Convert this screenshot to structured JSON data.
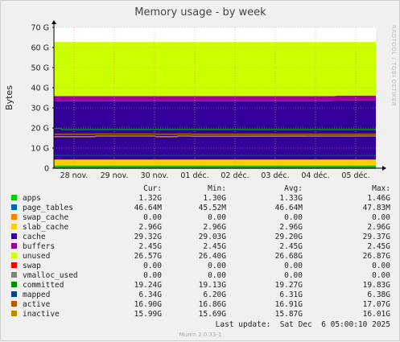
{
  "chart_data": {
    "type": "area",
    "title": "Memory usage - by week",
    "ylabel": "Bytes",
    "side_label": "RRDTOOL / TOBI OETIKER",
    "ylim": [
      0,
      70
    ],
    "yticks": [
      "0",
      "10 G",
      "20 G",
      "30 G",
      "40 G",
      "50 G",
      "60 G",
      "70 G"
    ],
    "x_labels": [
      "28 nov.",
      "29 nov.",
      "30 nov.",
      "01 déc.",
      "02 déc.",
      "03 déc.",
      "04 déc.",
      "05 déc."
    ],
    "x_ticks": [
      0.5,
      1.5,
      2.5,
      3.5,
      4.5,
      5.5,
      6.5,
      7.5
    ],
    "xlim": [
      0,
      8
    ],
    "stack_series": [
      {
        "name": "apps",
        "color": "#00cc00",
        "x": [
          0,
          8
        ],
        "values": [
          1.32,
          1.32
        ]
      },
      {
        "name": "page_tables",
        "color": "#0066b3",
        "x": [
          0,
          8
        ],
        "values": [
          0.05,
          0.05
        ]
      },
      {
        "name": "swap_cache",
        "color": "#ff8000",
        "x": [
          0,
          8
        ],
        "values": [
          0,
          0
        ]
      },
      {
        "name": "slab_cache",
        "color": "#ffcc00",
        "x": [
          0,
          8
        ],
        "values": [
          2.96,
          2.96
        ]
      },
      {
        "name": "cache",
        "color": "#330099",
        "x": [
          0,
          6.9,
          7.1,
          8
        ],
        "values": [
          29.0,
          29.0,
          29.3,
          29.32
        ]
      },
      {
        "name": "buffers",
        "color": "#990099",
        "x": [
          0,
          8
        ],
        "values": [
          2.45,
          2.45
        ]
      },
      {
        "name": "unused",
        "color": "#ccff00",
        "x": [
          0,
          6.9,
          7.1,
          8
        ],
        "values": [
          26.9,
          26.9,
          26.6,
          26.57
        ]
      },
      {
        "name": "swap",
        "color": "#ff0000",
        "x": [
          0,
          8
        ],
        "values": [
          0,
          0
        ]
      }
    ],
    "line_series": [
      {
        "name": "vmalloc_used",
        "color": "#808080",
        "x": [
          0,
          8
        ],
        "values": [
          0,
          0
        ]
      },
      {
        "name": "committed",
        "color": "#008f00",
        "x": [
          0,
          0.15,
          0.2,
          8
        ],
        "values": [
          19.8,
          19.8,
          19.2,
          19.24
        ]
      },
      {
        "name": "mapped",
        "color": "#00487d",
        "x": [
          0,
          8
        ],
        "values": [
          6.34,
          6.34
        ]
      },
      {
        "name": "active",
        "color": "#b35a00",
        "x": [
          0,
          1.0,
          1.05,
          2.5,
          2.55,
          3.05,
          3.1,
          3.4,
          3.45,
          8
        ],
        "values": [
          16.9,
          16.9,
          17.0,
          17.0,
          16.9,
          16.9,
          16.95,
          16.95,
          16.9,
          16.9
        ]
      },
      {
        "name": "inactive",
        "color": "#b38f00",
        "x": [
          0,
          1.0,
          1.05,
          2.5,
          2.55,
          3.05,
          3.1,
          3.4,
          3.45,
          8
        ],
        "values": [
          15.7,
          15.7,
          16.0,
          16.0,
          15.7,
          15.7,
          16.0,
          16.0,
          15.9,
          15.99
        ]
      }
    ],
    "legend_headers": [
      "Cur:",
      "Min:",
      "Avg:",
      "Max:"
    ],
    "legend": [
      {
        "name": "apps",
        "color": "#00cc00",
        "cur": "1.32G",
        "min": "1.30G",
        "avg": "1.33G",
        "max": "1.46G"
      },
      {
        "name": "page_tables",
        "color": "#0066b3",
        "cur": "46.64M",
        "min": "45.52M",
        "avg": "46.64M",
        "max": "47.83M"
      },
      {
        "name": "swap_cache",
        "color": "#ff8000",
        "cur": "0.00",
        "min": "0.00",
        "avg": "0.00",
        "max": "0.00"
      },
      {
        "name": "slab_cache",
        "color": "#ffcc00",
        "cur": "2.96G",
        "min": "2.96G",
        "avg": "2.96G",
        "max": "2.96G"
      },
      {
        "name": "cache",
        "color": "#330099",
        "cur": "29.32G",
        "min": "29.03G",
        "avg": "29.20G",
        "max": "29.37G"
      },
      {
        "name": "buffers",
        "color": "#990099",
        "cur": "2.45G",
        "min": "2.45G",
        "avg": "2.45G",
        "max": "2.45G"
      },
      {
        "name": "unused",
        "color": "#ccff00",
        "cur": "26.57G",
        "min": "26.40G",
        "avg": "26.68G",
        "max": "26.87G"
      },
      {
        "name": "swap",
        "color": "#ff0000",
        "cur": "0.00",
        "min": "0.00",
        "avg": "0.00",
        "max": "0.00"
      },
      {
        "name": "vmalloc_used",
        "color": "#808080",
        "cur": "0.00",
        "min": "0.00",
        "avg": "0.00",
        "max": "0.00"
      },
      {
        "name": "committed",
        "color": "#008f00",
        "cur": "19.24G",
        "min": "19.13G",
        "avg": "19.27G",
        "max": "19.83G"
      },
      {
        "name": "mapped",
        "color": "#00487d",
        "cur": "6.34G",
        "min": "6.20G",
        "avg": "6.31G",
        "max": "6.38G"
      },
      {
        "name": "active",
        "color": "#b35a00",
        "cur": "16.90G",
        "min": "16.86G",
        "avg": "16.91G",
        "max": "17.07G"
      },
      {
        "name": "inactive",
        "color": "#b38f00",
        "cur": "15.99G",
        "min": "15.69G",
        "avg": "15.87G",
        "max": "16.01G"
      }
    ],
    "last_update": "Last update:  Sat Dec  6 05:00:10 2025",
    "footer": "Munin 2.0.33-1"
  }
}
